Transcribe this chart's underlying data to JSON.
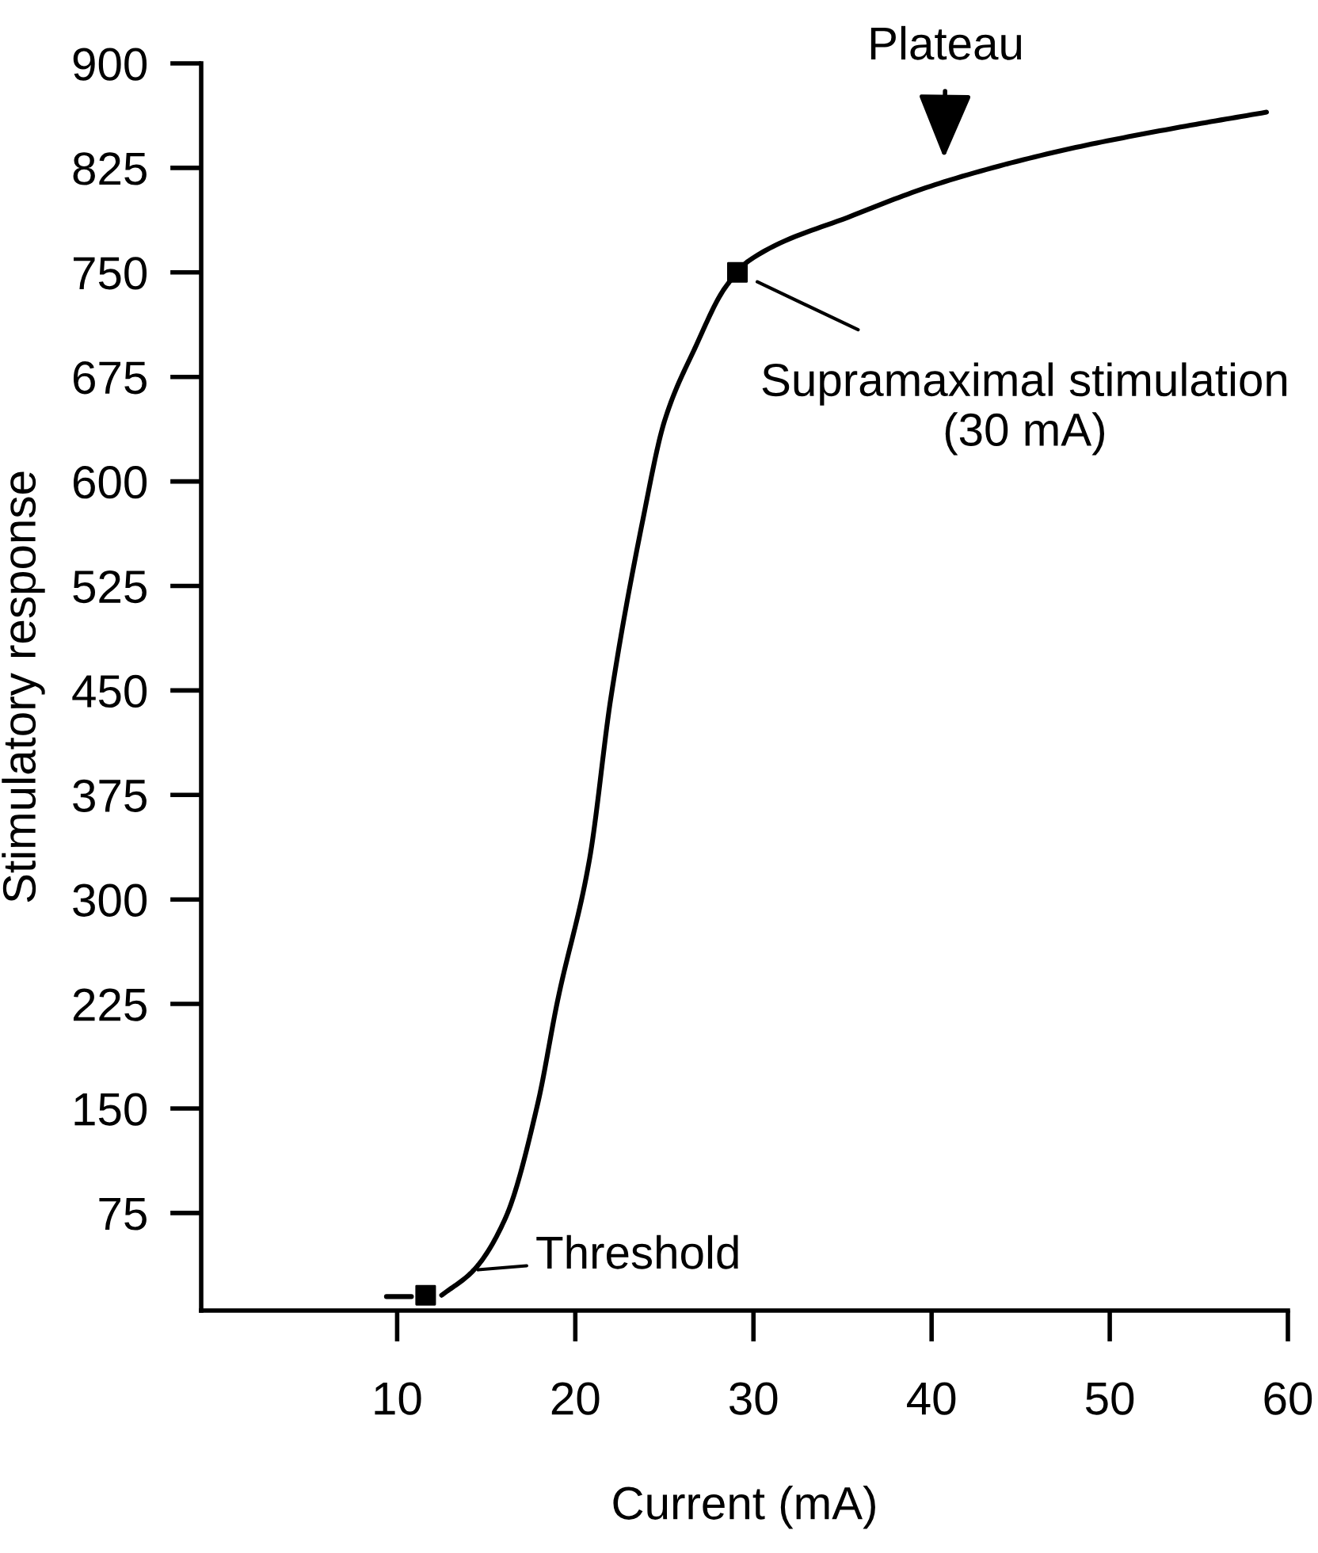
{
  "chart_data": {
    "type": "line",
    "xlabel": "Current (mA)",
    "ylabel": "Stimulatory response",
    "xlim": [
      -1,
      60
    ],
    "ylim": [
      5,
      900
    ],
    "xticks": [
      10,
      20,
      30,
      40,
      50,
      60
    ],
    "yticks": [
      75,
      150,
      225,
      300,
      375,
      450,
      525,
      600,
      675,
      750,
      825,
      900
    ],
    "grid": false,
    "legend": false,
    "series": [
      {
        "color": "#000000",
        "marker": "none",
        "line_style": "solid",
        "x": [
          12.5,
          14.3,
          16.1,
          17.9,
          19.0,
          20.8,
          22.0,
          23.8,
          25.0,
          26.8,
          28.3,
          29.1,
          29.7,
          35.6,
          40.7,
          47.5,
          53.4,
          58.8
        ],
        "values": [
          16,
          34,
          72,
          154,
          227,
          329,
          445,
          573,
          643,
          698,
          737,
          750,
          758,
          791,
          815,
          838,
          853,
          865
        ]
      },
      {
        "type": "line",
        "color": "#000000",
        "marker": "none",
        "line_style": "solid",
        "x": [
          9.4,
          10.8
        ],
        "values": [
          15,
          15
        ]
      },
      {
        "type": "scatter",
        "color": "#000000",
        "marker": "square",
        "x": [
          11.6,
          29.1
        ],
        "values": [
          16,
          750
        ]
      }
    ],
    "annotations": [
      {
        "text": "Threshold",
        "x": 14.3,
        "y": 34
      },
      {
        "text": "Supramaximal stimulation\n(30 mA)",
        "x": 29.1,
        "y": 750
      },
      {
        "text": "Plateau",
        "x": 40.7,
        "y": 815
      }
    ]
  }
}
